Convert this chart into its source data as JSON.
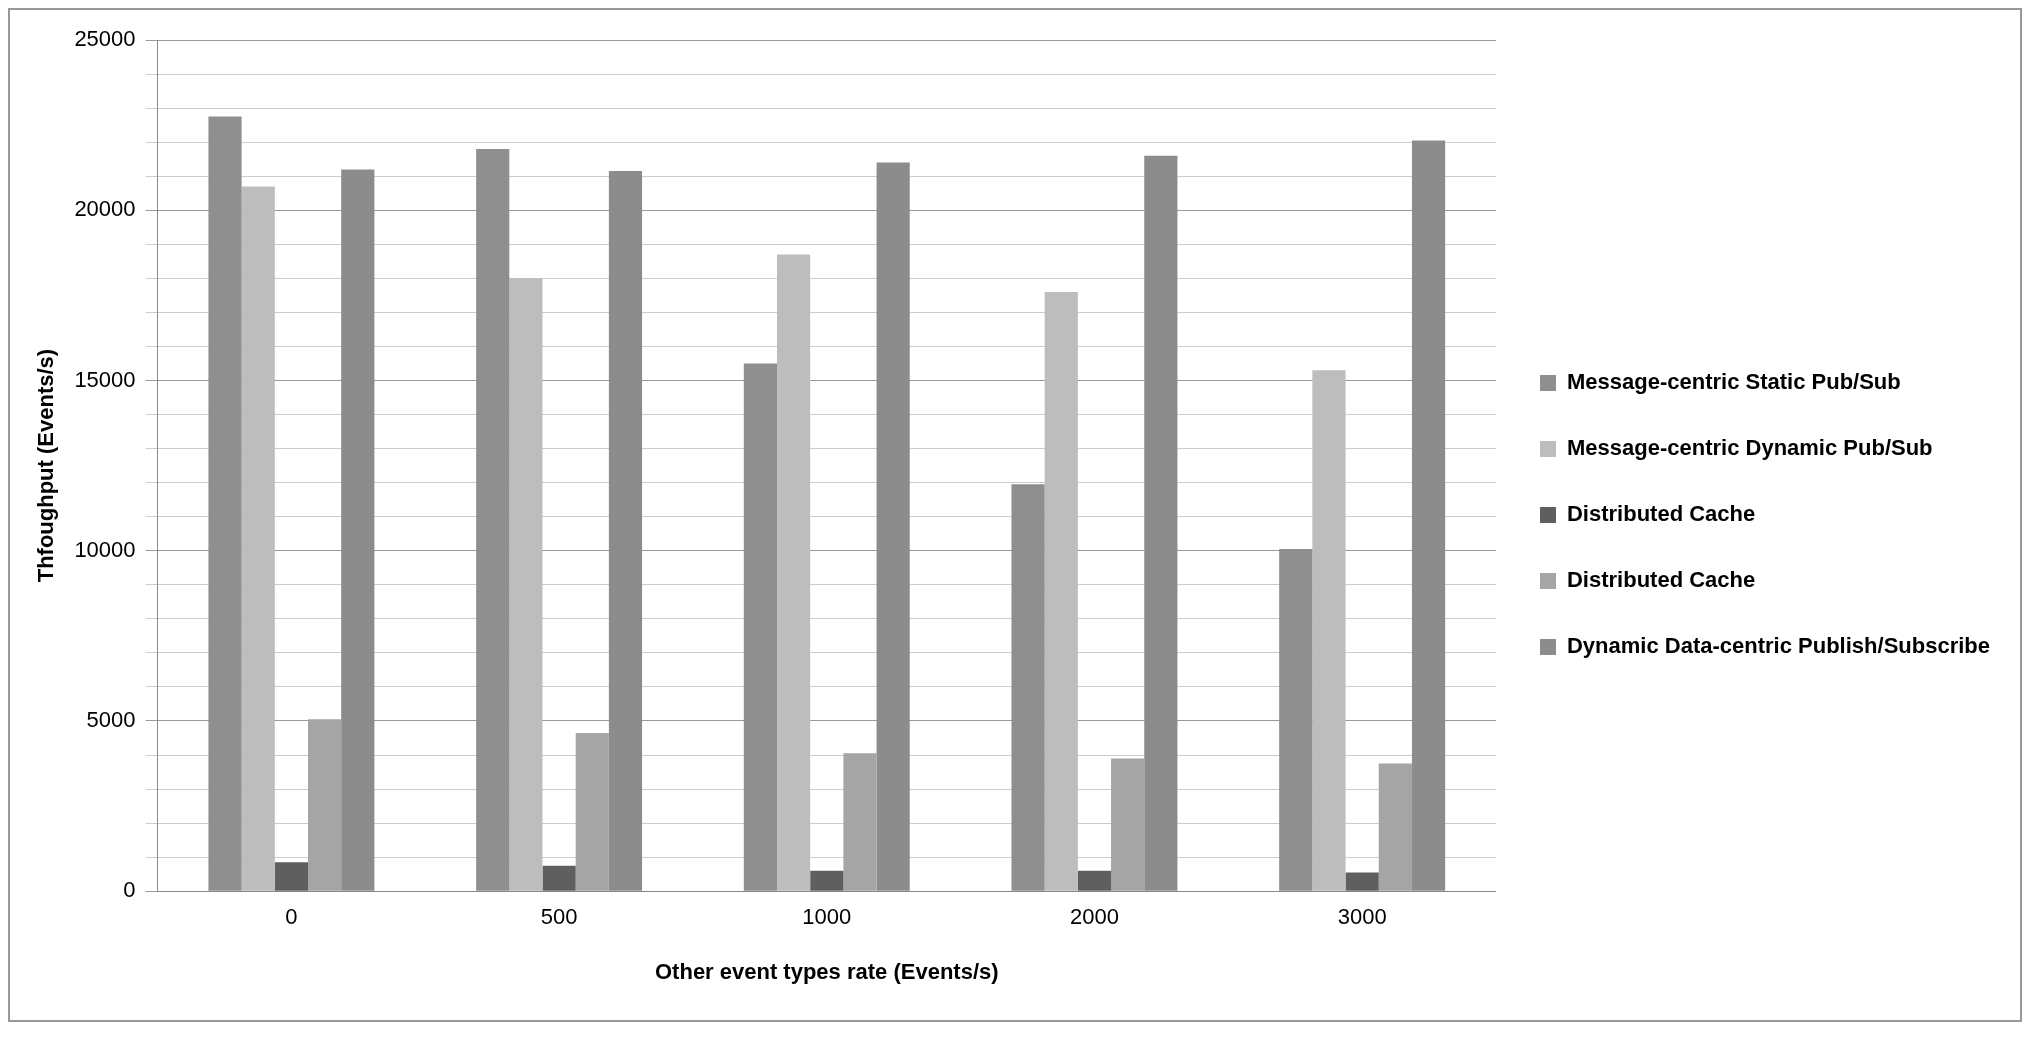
{
  "chart_data": {
    "type": "bar",
    "xlabel": "Other event types rate (Events/s)",
    "ylabel": "Thfoughput (Events/s)",
    "categories": [
      "0",
      "500",
      "1000",
      "2000",
      "3000"
    ],
    "series": [
      {
        "name": "Message-centric Static Pub/Sub",
        "color": "#8f8f8f",
        "values": [
          22750,
          21800,
          15500,
          11950,
          10050
        ]
      },
      {
        "name": "Message-centric Dynamic Pub/Sub",
        "color": "#bdbdbd",
        "values": [
          20700,
          18000,
          18700,
          17600,
          15300
        ]
      },
      {
        "name": "Distributed Cache",
        "color": "#5f5f5f",
        "values": [
          850,
          750,
          600,
          600,
          550
        ]
      },
      {
        "name": "Distributed Cache",
        "color": "#a5a5a5",
        "values": [
          5050,
          4650,
          4050,
          3900,
          3750
        ]
      },
      {
        "name": "Dynamic Data-centric Publish/Subscribe",
        "color": "#8c8c8c",
        "values": [
          21200,
          21150,
          21400,
          21600,
          22050
        ]
      }
    ],
    "ylim": [
      0,
      25000
    ],
    "yticks": [
      0,
      {
        "value": 1000,
        "label": null
      },
      {
        "value": 2000,
        "label": null
      },
      {
        "value": 3000,
        "label": null
      },
      {
        "value": 4000,
        "label": null
      },
      5000,
      {
        "value": 6000,
        "label": null
      },
      {
        "value": 7000,
        "label": null
      },
      {
        "value": 8000,
        "label": null
      },
      {
        "value": 9000,
        "label": null
      },
      10000,
      {
        "value": 11000,
        "label": null
      },
      {
        "value": 12000,
        "label": null
      },
      {
        "value": 13000,
        "label": null
      },
      {
        "value": 14000,
        "label": null
      },
      15000,
      {
        "value": 16000,
        "label": null
      },
      {
        "value": 17000,
        "label": null
      },
      {
        "value": 18000,
        "label": null
      },
      {
        "value": 19000,
        "label": null
      },
      20000,
      {
        "value": 21000,
        "label": null
      },
      {
        "value": 22000,
        "label": null
      },
      {
        "value": 23000,
        "label": null
      },
      {
        "value": 24000,
        "label": null
      },
      25000
    ],
    "grid": "y",
    "legend": "right"
  }
}
